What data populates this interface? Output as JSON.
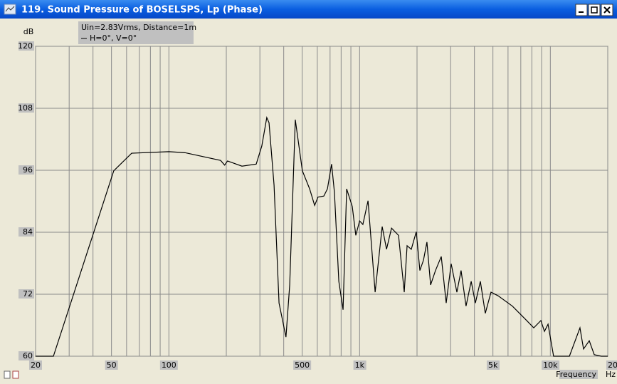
{
  "window": {
    "title": "119. Sound Pressure of BOSELSPS, Lp (Phase)"
  },
  "chart_data": {
    "type": "line",
    "xscale": "log",
    "grid": true,
    "y_label": "dB",
    "x_label": "Frequency",
    "x_unit": "Hz",
    "annotations": [
      "Uin=2.83Vrms, Distance=1m"
    ],
    "xlim": [
      20,
      20000
    ],
    "ylim": [
      60,
      120
    ],
    "yticks": [
      60,
      72,
      84,
      96,
      108,
      120
    ],
    "xticks": [
      20,
      50,
      100,
      500,
      {
        "value": 1000,
        "label": "1k"
      },
      {
        "value": 5000,
        "label": "5k"
      },
      {
        "value": 10000,
        "label": "10k"
      },
      {
        "value": 20000,
        "label": "20k"
      }
    ],
    "xminor": [
      30,
      40,
      60,
      70,
      80,
      90,
      200,
      300,
      400,
      600,
      700,
      800,
      900,
      2000,
      3000,
      4000,
      6000,
      7000,
      8000,
      9000
    ],
    "x": [
      20,
      24.8,
      51.4,
      63.8,
      100,
      121.5,
      186.7,
      196,
      203,
      241.6,
      287,
      307,
      326,
      335,
      356,
      378,
      411,
      430,
      460,
      501,
      547,
      581,
      605,
      649,
      678,
      713,
      738,
      778,
      819,
      855,
      915,
      955,
      1000,
      1040,
      1107,
      1206,
      1313,
      1384,
      1470,
      1600,
      1714,
      1774,
      1866,
      1982,
      2070,
      2162,
      2254,
      2356,
      2500,
      2680,
      2844,
      3020,
      3236,
      3404,
      3614,
      3846,
      4046,
      4296,
      4560,
      4886,
      5322,
      6325,
      7516,
      8186,
      8920,
      9315,
      9727,
      10400,
      12590,
      14300,
      14930,
      16000,
      16990,
      18500,
      20000
    ],
    "series": [
      {
        "name": "H=0°, V=0°",
        "color": "#000000",
        "values": [
          60,
          60,
          95.9,
          99.3,
          99.6,
          99.4,
          97.9,
          97.0,
          97.8,
          96.8,
          97.2,
          100.7,
          106.2,
          105.2,
          93.1,
          70.3,
          63.7,
          73.8,
          105.8,
          95.9,
          92.4,
          89.2,
          90.8,
          91.0,
          92.4,
          97.2,
          91.7,
          74.5,
          69.0,
          92.4,
          89.0,
          83.4,
          86.2,
          85.5,
          90.1,
          72.4,
          85.1,
          80.7,
          84.8,
          83.4,
          72.4,
          81.4,
          80.7,
          84.1,
          76.6,
          78.6,
          82.1,
          73.8,
          76.6,
          79.3,
          70.3,
          77.9,
          72.4,
          76.6,
          69.7,
          74.5,
          70.3,
          74.5,
          68.3,
          72.4,
          71.7,
          69.7,
          66.9,
          65.5,
          66.9,
          64.8,
          66.2,
          60,
          60,
          65.5,
          61.4,
          63.0,
          60.3,
          60,
          60
        ]
      }
    ]
  }
}
